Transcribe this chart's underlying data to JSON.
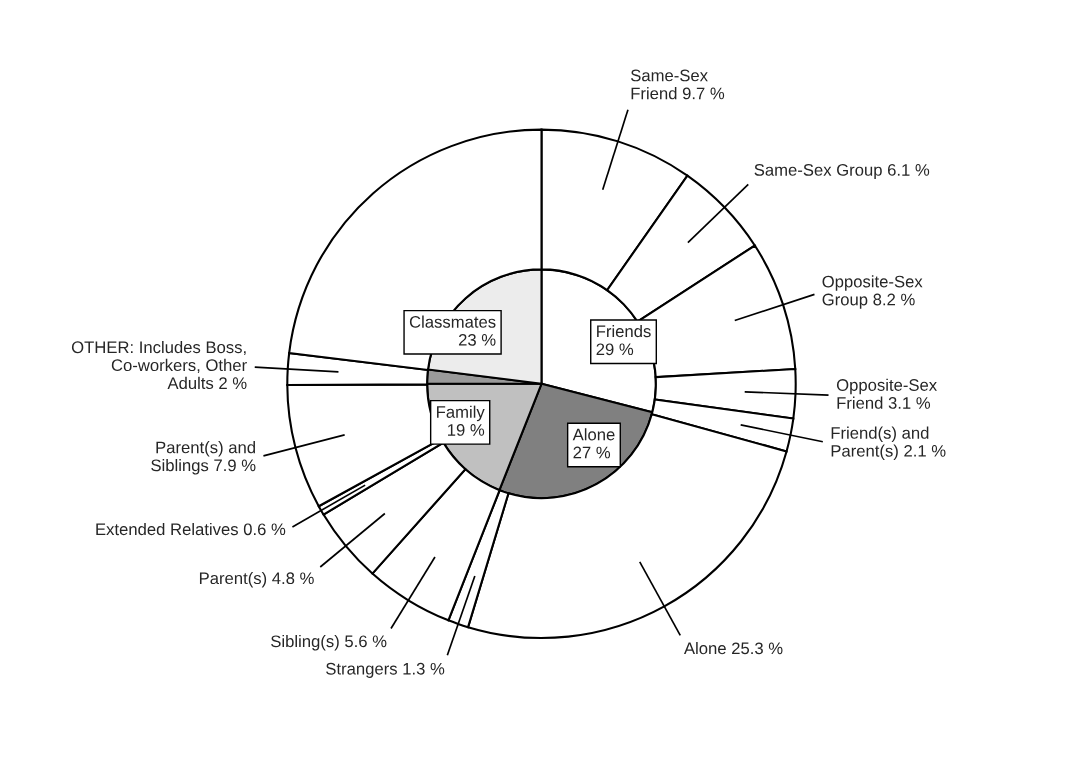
{
  "chart_data": {
    "type": "donut",
    "categories": [
      "Same-Sex\nFriend",
      "Same-Sex Group",
      "Opposite-Sex\nGroup",
      "Opposite-Sex\nFriend",
      "Friend(s) and\nParent(s)",
      "Alone",
      "Strangers",
      "Sibling(s)",
      "Parent(s)",
      "Extended Relatives",
      "Parent(s) and\nSiblings",
      "OTHER: Includes Boss,\nCo-workers, Other\nAdults",
      null
    ],
    "series": [
      {
        "type": "pie",
        "values": [
          29,
          null,
          null,
          null,
          null,
          27,
          null,
          19,
          null,
          null,
          null,
          2,
          23
        ],
        "value_labels": [
          "Friends\n29 %",
          null,
          null,
          null,
          null,
          "Alone\n27 %",
          null,
          "Family\n19 %",
          null,
          null,
          null,
          null,
          "Classmates\n23 %"
        ],
        "colors": [
          "#ffffff",
          null,
          null,
          null,
          null,
          "#808080",
          null,
          "#c0c0c0",
          null,
          null,
          null,
          "#9a9a9a",
          "#ececec"
        ]
      },
      {
        "values": [
          9.7,
          6.1,
          8.2,
          3.1,
          2.1,
          25.3,
          1.3,
          5.6,
          4.8,
          0.6,
          7.9,
          2,
          23
        ],
        "value_labels": [
          "9.7 %",
          "6.1 %",
          "8.2 %",
          "3.1 %",
          "2.1 %",
          "25.3 %",
          "1.3 %",
          "5.6 %",
          "4.8 %",
          "0.6 %",
          "7.9 %",
          "2 %",
          null
        ],
        "colors": [
          "#ffffff",
          "#ffffff",
          "#ffffff",
          "#ffffff",
          "#ffffff",
          "#ffffff",
          "#ffffff",
          "#ffffff",
          "#ffffff",
          "#ffffff",
          "#ffffff",
          "#ffffff",
          "#ffffff"
        ]
      }
    ]
  }
}
